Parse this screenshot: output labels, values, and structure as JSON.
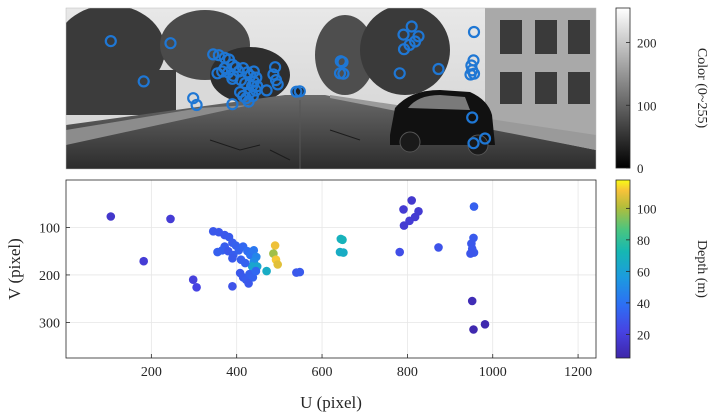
{
  "colors": {
    "circle": "#1f77d4",
    "axis": "#262626",
    "grid": "#e6e6e6"
  },
  "top_panel": {
    "colorbar_label": "Color (0~255)",
    "colorbar_ticks": [
      0,
      100,
      200
    ],
    "colorbar_range": [
      0,
      255
    ]
  },
  "chart_data": {
    "type": "scatter",
    "xlabel": "U (pixel)",
    "ylabel": "V (pixel)",
    "xlim": [
      0,
      1242
    ],
    "ylim": [
      375,
      0
    ],
    "y_reversed": true,
    "xticks": [
      200,
      400,
      600,
      800,
      1000,
      1200
    ],
    "yticks": [
      100,
      200,
      300
    ],
    "grid": true,
    "colorbar": {
      "label": "Depth (m)",
      "ticks": [
        20,
        40,
        60,
        80,
        100
      ],
      "range": [
        5,
        118
      ],
      "colormap": "parula"
    },
    "points": [
      {
        "u": 105,
        "v": 77,
        "depth": 15
      },
      {
        "u": 245,
        "v": 82,
        "depth": 18
      },
      {
        "u": 182,
        "v": 171,
        "depth": 18
      },
      {
        "u": 298,
        "v": 210,
        "depth": 20
      },
      {
        "u": 306,
        "v": 226,
        "depth": 22
      },
      {
        "u": 345,
        "v": 108,
        "depth": 30
      },
      {
        "u": 358,
        "v": 110,
        "depth": 30
      },
      {
        "u": 372,
        "v": 116,
        "depth": 30
      },
      {
        "u": 382,
        "v": 120,
        "depth": 31
      },
      {
        "u": 390,
        "v": 132,
        "depth": 32
      },
      {
        "u": 398,
        "v": 138,
        "depth": 33
      },
      {
        "u": 372,
        "v": 140,
        "depth": 32
      },
      {
        "u": 366,
        "v": 148,
        "depth": 33
      },
      {
        "u": 355,
        "v": 152,
        "depth": 33
      },
      {
        "u": 380,
        "v": 150,
        "depth": 30
      },
      {
        "u": 392,
        "v": 158,
        "depth": 32
      },
      {
        "u": 405,
        "v": 148,
        "depth": 34
      },
      {
        "u": 415,
        "v": 140,
        "depth": 36
      },
      {
        "u": 425,
        "v": 150,
        "depth": 38
      },
      {
        "u": 432,
        "v": 158,
        "depth": 40
      },
      {
        "u": 440,
        "v": 148,
        "depth": 42
      },
      {
        "u": 446,
        "v": 162,
        "depth": 48
      },
      {
        "u": 440,
        "v": 172,
        "depth": 50
      },
      {
        "u": 436,
        "v": 182,
        "depth": 62
      },
      {
        "u": 448,
        "v": 182,
        "depth": 62
      },
      {
        "u": 470,
        "v": 192,
        "depth": 66
      },
      {
        "u": 490,
        "v": 138,
        "depth": 110
      },
      {
        "u": 486,
        "v": 155,
        "depth": 98
      },
      {
        "u": 492,
        "v": 168,
        "depth": 112
      },
      {
        "u": 496,
        "v": 178,
        "depth": 108
      },
      {
        "u": 390,
        "v": 165,
        "depth": 31
      },
      {
        "u": 410,
        "v": 168,
        "depth": 33
      },
      {
        "u": 420,
        "v": 175,
        "depth": 34
      },
      {
        "u": 408,
        "v": 196,
        "depth": 30
      },
      {
        "u": 415,
        "v": 205,
        "depth": 31
      },
      {
        "u": 422,
        "v": 210,
        "depth": 32
      },
      {
        "u": 430,
        "v": 198,
        "depth": 33
      },
      {
        "u": 438,
        "v": 205,
        "depth": 34
      },
      {
        "u": 445,
        "v": 192,
        "depth": 36
      },
      {
        "u": 428,
        "v": 218,
        "depth": 30
      },
      {
        "u": 390,
        "v": 224,
        "depth": 28
      },
      {
        "u": 540,
        "v": 195,
        "depth": 30
      },
      {
        "u": 548,
        "v": 194,
        "depth": 31
      },
      {
        "u": 644,
        "v": 124,
        "depth": 68
      },
      {
        "u": 648,
        "v": 126,
        "depth": 70
      },
      {
        "u": 642,
        "v": 152,
        "depth": 66
      },
      {
        "u": 650,
        "v": 153,
        "depth": 66
      },
      {
        "u": 782,
        "v": 152,
        "depth": 26
      },
      {
        "u": 791,
        "v": 62,
        "depth": 17
      },
      {
        "u": 810,
        "v": 43,
        "depth": 16
      },
      {
        "u": 805,
        "v": 86,
        "depth": 18
      },
      {
        "u": 818,
        "v": 78,
        "depth": 17
      },
      {
        "u": 826,
        "v": 66,
        "depth": 17
      },
      {
        "u": 792,
        "v": 96,
        "depth": 17
      },
      {
        "u": 873,
        "v": 142,
        "depth": 28
      },
      {
        "u": 956,
        "v": 56,
        "depth": 33
      },
      {
        "u": 955,
        "v": 122,
        "depth": 31
      },
      {
        "u": 950,
        "v": 134,
        "depth": 30
      },
      {
        "u": 952,
        "v": 145,
        "depth": 30
      },
      {
        "u": 956,
        "v": 153,
        "depth": 30
      },
      {
        "u": 948,
        "v": 155,
        "depth": 29
      },
      {
        "u": 952,
        "v": 255,
        "depth": 9
      },
      {
        "u": 955,
        "v": 315,
        "depth": 7
      },
      {
        "u": 982,
        "v": 304,
        "depth": 7
      }
    ]
  }
}
